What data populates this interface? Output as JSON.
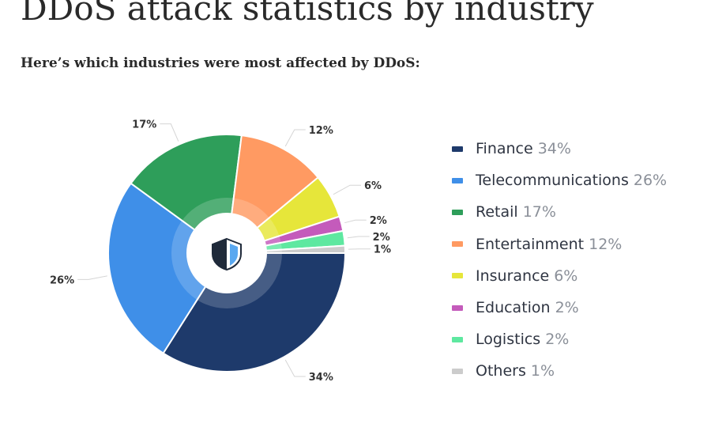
{
  "page": {
    "title": "DDoS attack statistics by industry",
    "intro": "Here’s which industries were most affected by DDoS:"
  },
  "chart_data": {
    "type": "pie",
    "variant": "donut",
    "title": "",
    "legend_position": "right",
    "start_angle_deg": 90,
    "direction": "clockwise",
    "categories": [
      "Finance",
      "Telecommunications",
      "Retail",
      "Entertainment",
      "Insurance",
      "Education",
      "Logistics",
      "Others"
    ],
    "values": [
      34,
      26,
      17,
      12,
      6,
      2,
      2,
      1
    ],
    "labels": [
      "34%",
      "26%",
      "17%",
      "12%",
      "6%",
      "2%",
      "2%",
      "1%"
    ],
    "colors": [
      "#1e3a6b",
      "#3f8fe8",
      "#2e9e5a",
      "#ff9a62",
      "#e6e63a",
      "#c45bbb",
      "#5ee8a0",
      "#cccccc"
    ],
    "center_icon": "shield-icon"
  }
}
